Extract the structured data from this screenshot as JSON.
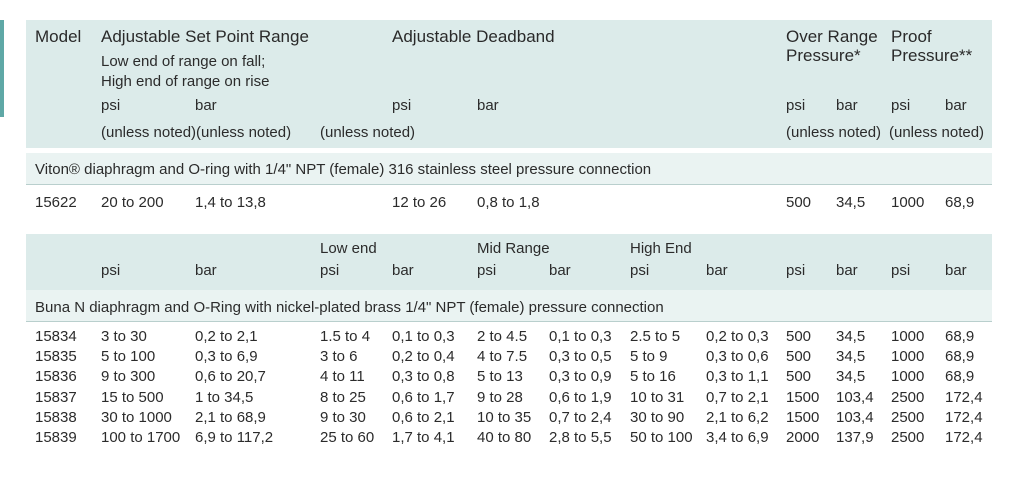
{
  "header": {
    "model": "Model",
    "set_point": "Adjustable Set Point Range",
    "set_point_note1": "Low end of range on fall;",
    "set_point_note2": "High end of range on rise",
    "deadband": "Adjustable Deadband",
    "over_range_1": "Over Range",
    "over_range_2": "Pressure*",
    "proof_1": "Proof",
    "proof_2": "Pressure**",
    "psi": "psi",
    "bar": "bar",
    "unless_noted": "(unless noted)",
    "unless_noted_pair": "(unless noted)(unless noted)"
  },
  "section1": {
    "title": "Viton® diaphragm and O-ring with 1/4\" NPT (female) 316 stainless steel pressure connection",
    "row": {
      "model": "15622",
      "sp_psi": "20 to 200",
      "sp_bar": "1,4 to 13,8",
      "db_psi": "12 to 26",
      "db_bar": "0,8 to 1,8",
      "or_psi": "500",
      "or_bar": "34,5",
      "pr_psi": "1000",
      "pr_bar": "68,9"
    }
  },
  "subheader": {
    "low_end": "Low end",
    "mid_range": "Mid Range",
    "high_end": "High End",
    "psi": "psi",
    "bar": "bar"
  },
  "section2": {
    "title": "Buna N diaphragm and O-Ring with nickel-plated brass 1/4\" NPT (female) pressure connection",
    "rows": [
      {
        "model": "15834",
        "sp_psi": "3 to 30",
        "sp_bar": "0,2 to 2,1",
        "lo_psi": "1.5 to 4",
        "lo_bar": "0,1 to 0,3",
        "mid_psi": "2 to 4.5",
        "mid_bar": "0,1 to 0,3",
        "hi_psi": "2.5 to 5",
        "hi_bar": "0,2 to 0,3",
        "or_psi": "500",
        "or_bar": "34,5",
        "pr_psi": "1000",
        "pr_bar": "68,9"
      },
      {
        "model": "15835",
        "sp_psi": "5 to 100",
        "sp_bar": "0,3 to 6,9",
        "lo_psi": "3 to 6",
        "lo_bar": "0,2 to 0,4",
        "mid_psi": "4 to 7.5",
        "mid_bar": "0,3 to 0,5",
        "hi_psi": "5 to 9",
        "hi_bar": "0,3 to 0,6",
        "or_psi": "500",
        "or_bar": "34,5",
        "pr_psi": "1000",
        "pr_bar": "68,9"
      },
      {
        "model": "15836",
        "sp_psi": "9 to 300",
        "sp_bar": "0,6 to 20,7",
        "lo_psi": "4 to 11",
        "lo_bar": "0,3 to 0,8",
        "mid_psi": "5 to 13",
        "mid_bar": "0,3 to 0,9",
        "hi_psi": "5 to 16",
        "hi_bar": "0,3 to 1,1",
        "or_psi": "500",
        "or_bar": "34,5",
        "pr_psi": "1000",
        "pr_bar": "68,9"
      },
      {
        "model": "15837",
        "sp_psi": "15 to 500",
        "sp_bar": "1 to 34,5",
        "lo_psi": "8 to 25",
        "lo_bar": "0,6 to 1,7",
        "mid_psi": "9 to 28",
        "mid_bar": "0,6 to 1,9",
        "hi_psi": "10 to 31",
        "hi_bar": "0,7 to 2,1",
        "or_psi": "1500",
        "or_bar": "103,4",
        "pr_psi": "2500",
        "pr_bar": "172,4"
      },
      {
        "model": "15838",
        "sp_psi": "30 to 1000",
        "sp_bar": "2,1 to 68,9",
        "lo_psi": "9 to 30",
        "lo_bar": "0,6 to 2,1",
        "mid_psi": "10 to 35",
        "mid_bar": "0,7 to 2,4",
        "hi_psi": "30 to 90",
        "hi_bar": "2,1 to 6,2",
        "or_psi": "1500",
        "or_bar": "103,4",
        "pr_psi": "2500",
        "pr_bar": "172,4"
      },
      {
        "model": "15839",
        "sp_psi": "100 to 1700",
        "sp_bar": "6,9 to 117,2",
        "lo_psi": "25 to 60",
        "lo_bar": "1,7 to 4,1",
        "mid_psi": "40 to 80",
        "mid_bar": "2,8 to 5,5",
        "hi_psi": "50 to 100",
        "hi_bar": "3,4 to 6,9",
        "or_psi": "2000",
        "or_bar": "137,9",
        "pr_psi": "2500",
        "pr_bar": "172,4"
      }
    ]
  }
}
